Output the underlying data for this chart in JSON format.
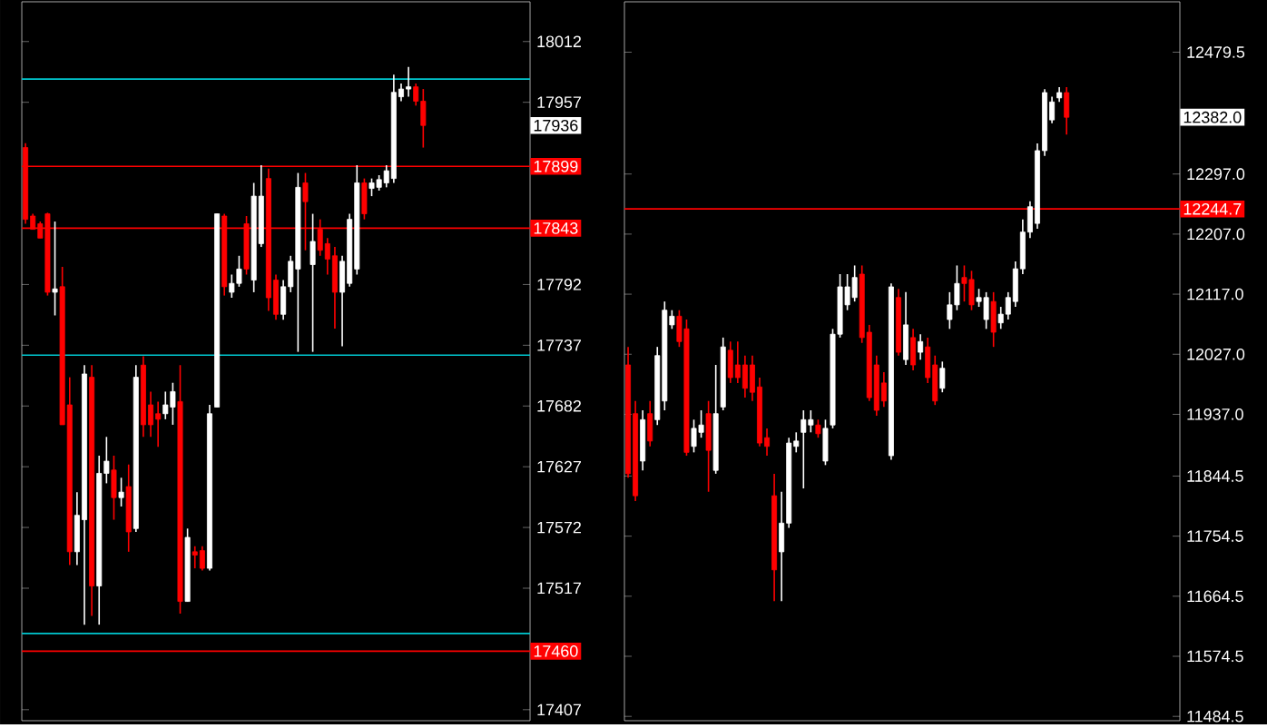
{
  "chart_data": [
    {
      "type": "candlestick",
      "categories": [
        null,
        null,
        null,
        null,
        null,
        null,
        null,
        null,
        null,
        null,
        null,
        null,
        null,
        null,
        null,
        null,
        null,
        null,
        null,
        null,
        null,
        null,
        null,
        null,
        null,
        null,
        null,
        null,
        null,
        null,
        null,
        null,
        null,
        null,
        null,
        null,
        null,
        null,
        null,
        null,
        null,
        null,
        null,
        null,
        null,
        null,
        null,
        null,
        null,
        null,
        null,
        null,
        null,
        null,
        null,
        null,
        null,
        null,
        null,
        null,
        null,
        null,
        null,
        null,
        null,
        null,
        null,
        null,
        null
      ],
      "ohlc": [
        [
          17916,
          17920,
          17847,
          17851
        ],
        [
          17854,
          17856,
          17842,
          17842
        ],
        [
          17847,
          17849,
          17834,
          17834
        ],
        [
          17856,
          17857,
          17782,
          17785
        ],
        [
          17785,
          17849,
          17764,
          17788
        ],
        [
          17790,
          17808,
          17665,
          17665
        ],
        [
          17683,
          17708,
          17538,
          17550
        ],
        [
          17550,
          17604,
          17538,
          17583
        ],
        [
          17579,
          17719,
          17484,
          17711
        ],
        [
          17708,
          17719,
          17492,
          17519
        ],
        [
          17519,
          17637,
          17484,
          17621
        ],
        [
          17621,
          17654,
          17612,
          17632
        ],
        [
          17624,
          17637,
          17579,
          17599
        ],
        [
          17599,
          17617,
          17591,
          17604
        ],
        [
          17609,
          17629,
          17550,
          17568
        ],
        [
          17571,
          17719,
          17568,
          17708
        ],
        [
          17719,
          17727,
          17654,
          17665
        ],
        [
          17683,
          17695,
          17654,
          17665
        ],
        [
          17675,
          17686,
          17645,
          17670
        ],
        [
          17675,
          17695,
          17670,
          17683
        ],
        [
          17681,
          17703,
          17665,
          17695
        ],
        [
          17686,
          17719,
          17494,
          17505
        ],
        [
          17505,
          17571,
          17505,
          17563
        ],
        [
          17550,
          17555,
          17535,
          17547
        ],
        [
          17551,
          17555,
          17533,
          17535
        ],
        [
          17535,
          17683,
          17533,
          17675
        ],
        [
          17681,
          17856,
          17681,
          17856
        ],
        [
          17854,
          17856,
          17782,
          17790
        ],
        [
          17785,
          17801,
          17780,
          17793
        ],
        [
          17793,
          17818,
          17790,
          17806
        ],
        [
          17847,
          17854,
          17801,
          17806
        ],
        [
          17796,
          17884,
          17785,
          17872
        ],
        [
          17829,
          17900,
          17826,
          17872
        ],
        [
          17888,
          17897,
          17768,
          17780
        ],
        [
          17796,
          17801,
          17760,
          17765
        ],
        [
          17765,
          17796,
          17760,
          17790
        ],
        [
          17790,
          17818,
          17785,
          17813
        ],
        [
          17806,
          17893,
          17731,
          17880
        ],
        [
          17884,
          17893,
          17823,
          17867
        ],
        [
          17810,
          17856,
          17731,
          17831
        ],
        [
          17842,
          17851,
          17818,
          17823
        ],
        [
          17829,
          17834,
          17801,
          17815
        ],
        [
          17818,
          17826,
          17752,
          17785
        ],
        [
          17785,
          17818,
          17736,
          17813
        ],
        [
          17793,
          17856,
          17790,
          17851
        ],
        [
          17806,
          17900,
          17801,
          17884
        ],
        [
          17884,
          17888,
          17851,
          17856
        ],
        [
          17879,
          17888,
          17872,
          17884
        ],
        [
          17880,
          17891,
          17877,
          17887
        ],
        [
          17884,
          17900,
          17880,
          17895
        ],
        [
          17888,
          17982,
          17884,
          17966
        ],
        [
          17962,
          17974,
          17958,
          17969
        ],
        [
          17969,
          17989,
          17962,
          17971
        ],
        [
          17971,
          17974,
          17954,
          17958
        ],
        [
          17958,
          17969,
          17916,
          17936
        ],
        null,
        null,
        null,
        null,
        null,
        null,
        null,
        null,
        null,
        null,
        null,
        null,
        null,
        null
      ],
      "ylim": [
        17397,
        18048
      ],
      "yticks": [
        17407,
        17517,
        17572,
        17627,
        17682,
        17737,
        17792,
        17957,
        18012
      ],
      "tick_labels": "y",
      "ref_lines": [
        {
          "axis": "y",
          "value": 17899,
          "label": "17899",
          "color": "#ff0000"
        },
        {
          "axis": "y",
          "value": 17843,
          "label": "17843",
          "color": "#ff0000"
        },
        {
          "axis": "y",
          "value": 17460,
          "label": "17460",
          "color": "#ff0000"
        },
        {
          "axis": "y",
          "value": 17978,
          "color": "#00c8d0"
        },
        {
          "axis": "y",
          "value": 17728,
          "color": "#00c8d0"
        },
        {
          "axis": "y",
          "value": 17476,
          "color": "#00c8d0"
        }
      ],
      "annotations": [
        "17936"
      ]
    },
    {
      "type": "candlestick",
      "categories": [
        null,
        null,
        null,
        null,
        null,
        null,
        null,
        null,
        null,
        null,
        null,
        null,
        null,
        null,
        null,
        null,
        null,
        null,
        null,
        null,
        null,
        null,
        null,
        null,
        null,
        null,
        null,
        null,
        null,
        null,
        null,
        null,
        null,
        null,
        null,
        null,
        null,
        null,
        null,
        null,
        null,
        null,
        null,
        null,
        null,
        null,
        null,
        null,
        null,
        null,
        null,
        null,
        null,
        null,
        null,
        null,
        null,
        null,
        null,
        null,
        null,
        null,
        null,
        null,
        null,
        null,
        null,
        null,
        null,
        null,
        null,
        null,
        null,
        null,
        null,
        null
      ],
      "ohlc": [
        [
          12011,
          12038,
          11842,
          11848
        ],
        [
          11938,
          11957,
          11807,
          11815
        ],
        [
          11867,
          11943,
          11853,
          11929
        ],
        [
          11938,
          11957,
          11889,
          11897
        ],
        [
          11929,
          12038,
          11921,
          12025
        ],
        [
          11957,
          12106,
          11943,
          12093
        ],
        [
          12071,
          12093,
          12065,
          12084
        ],
        [
          12084,
          12093,
          12038,
          12046
        ],
        [
          12065,
          12079,
          11875,
          11880
        ],
        [
          11889,
          11929,
          11880,
          11916
        ],
        [
          11910,
          11943,
          11902,
          11921
        ],
        [
          11938,
          11957,
          11821,
          11883
        ],
        [
          11853,
          12011,
          11848,
          11938
        ],
        [
          11948,
          12052,
          11943,
          12038
        ],
        [
          12033,
          12046,
          11984,
          11992
        ],
        [
          12011,
          12046,
          11984,
          11992
        ],
        [
          12011,
          12025,
          11962,
          11976
        ],
        [
          12011,
          12025,
          11957,
          11970
        ],
        [
          11978,
          11992,
          11889,
          11894
        ],
        [
          11902,
          11916,
          11875,
          11889
        ],
        [
          11815,
          11848,
          11657,
          11704
        ],
        [
          11731,
          11821,
          11657,
          11774
        ],
        [
          11774,
          11902,
          11767,
          11894
        ],
        [
          11889,
          11910,
          11880,
          11897
        ],
        [
          11910,
          11943,
          11826,
          11929
        ],
        [
          11921,
          11943,
          11910,
          11929
        ],
        [
          11921,
          11929,
          11902,
          11908
        ],
        [
          11867,
          11929,
          11861,
          11916
        ],
        [
          11921,
          12065,
          11916,
          12057
        ],
        [
          12057,
          12147,
          12052,
          12128
        ],
        [
          12101,
          12147,
          12093,
          12128
        ],
        [
          12112,
          12160,
          12106,
          12142
        ],
        [
          12147,
          12160,
          12044,
          12052
        ],
        [
          12060,
          12071,
          11957,
          11962
        ],
        [
          12011,
          12025,
          11935,
          11943
        ],
        [
          11984,
          12000,
          11948,
          11957
        ],
        [
          11875,
          12133,
          11869,
          12128
        ],
        [
          12112,
          12125,
          12025,
          12030
        ],
        [
          12019,
          12120,
          12011,
          12071
        ],
        [
          12052,
          12065,
          12003,
          12011
        ],
        [
          12030,
          12057,
          12019,
          12046
        ],
        [
          12038,
          12052,
          11984,
          11992
        ],
        [
          12011,
          12025,
          11951,
          11957
        ],
        [
          11976,
          12016,
          11970,
          12006
        ],
        [
          12079,
          12120,
          12065,
          12101
        ],
        [
          12101,
          12160,
          12093,
          12133
        ],
        [
          12142,
          12160,
          12106,
          12133
        ],
        [
          12139,
          12152,
          12093,
          12101
        ],
        [
          12106,
          12125,
          12098,
          12112
        ],
        [
          12079,
          12120,
          12065,
          12112
        ],
        [
          12106,
          12120,
          12038,
          12060
        ],
        [
          12074,
          12098,
          12065,
          12087
        ],
        [
          12087,
          12120,
          12079,
          12112
        ],
        [
          12106,
          12166,
          12098,
          12155
        ],
        [
          12155,
          12229,
          12147,
          12210
        ],
        [
          12210,
          12256,
          12201,
          12248
        ],
        [
          12223,
          12343,
          12215,
          12332
        ],
        [
          12332,
          12424,
          12324,
          12419
        ],
        [
          12378,
          12413,
          12373,
          12405
        ],
        [
          12411,
          12427,
          12405,
          12419
        ],
        [
          12419,
          12427,
          12356,
          12382
        ],
        null,
        null,
        null,
        null,
        null,
        null,
        null,
        null,
        null,
        null,
        null,
        null,
        null,
        null,
        null
      ],
      "ylim": [
        11478,
        12555
      ],
      "yticks": [
        {
          "value": 11484.5,
          "label": "11484.5"
        },
        {
          "value": 11574.5,
          "label": "11574.5"
        },
        {
          "value": 11664.5,
          "label": "11664.5"
        },
        {
          "value": 11754.5,
          "label": "11754.5"
        },
        {
          "value": 11844.5,
          "label": "11844.5"
        },
        {
          "value": 11937,
          "label": "11937.0"
        },
        {
          "value": 12027,
          "label": "12027.0"
        },
        {
          "value": 12117,
          "label": "12117.0"
        },
        {
          "value": 12207,
          "label": "12207.0"
        },
        {
          "value": 12297,
          "label": "12297.0"
        },
        {
          "value": 12479.5,
          "label": "12479.5"
        }
      ],
      "tick_labels": "y",
      "ref_lines": [
        {
          "axis": "y",
          "value": 12244.7,
          "label": "12244.7",
          "color": "#ff0000"
        }
      ],
      "annotations": [
        "12382.0"
      ]
    }
  ]
}
